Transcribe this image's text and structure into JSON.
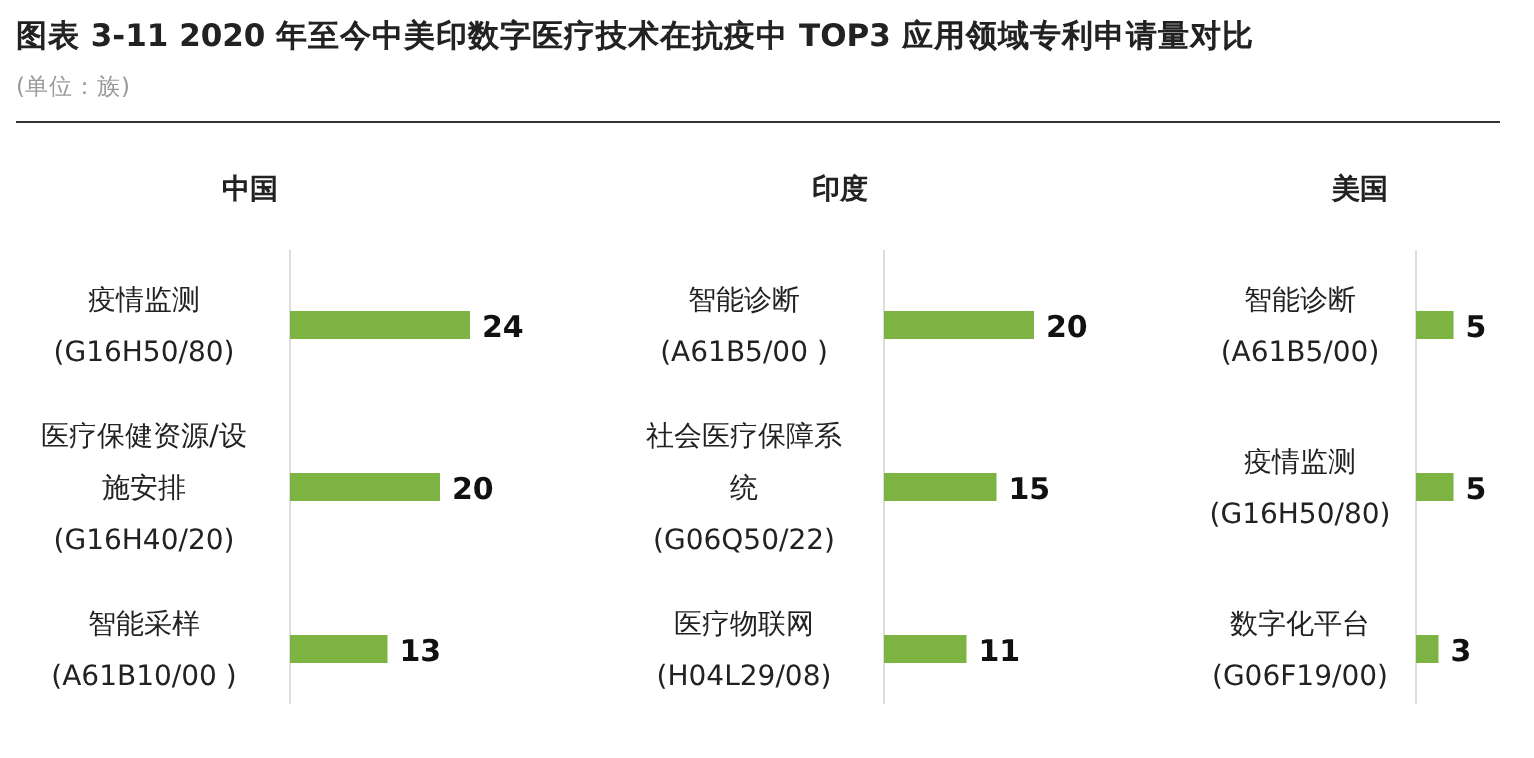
{
  "chart_data": [
    {
      "type": "other",
      "title": "图表 3-11  2020 年至今中美印数字医疗技术在抗疫中 TOP3 应用领域专利申请量对比",
      "subtitle": "(单位：族)"
    },
    {
      "type": "bar",
      "orientation": "horizontal",
      "title": "中国",
      "categories": [
        "疫情监测 (G16H50/80)",
        "医疗保健资源/设施安排 (G16H40/20)",
        "智能采样 (A61B10/00 )"
      ],
      "values": [
        24,
        20,
        13
      ],
      "color": "#7cb342",
      "data_labels": true
    },
    {
      "type": "bar",
      "orientation": "horizontal",
      "title": "印度",
      "categories": [
        "智能诊断 (A61B5/00 )",
        "社会医疗保障系统 (G06Q50/22)",
        "医疗物联网 (H04L29/08)"
      ],
      "values": [
        20,
        15,
        11
      ],
      "color": "#7cb342",
      "data_labels": true
    },
    {
      "type": "bar",
      "orientation": "horizontal",
      "title": "美国",
      "categories": [
        "智能诊断 (A61B5/00)",
        "疫情监测 (G16H50/80)",
        "数字化平台 (G06F19/00)"
      ],
      "values": [
        5,
        5,
        3
      ],
      "color": "#7cb342",
      "data_labels": true
    }
  ]
}
